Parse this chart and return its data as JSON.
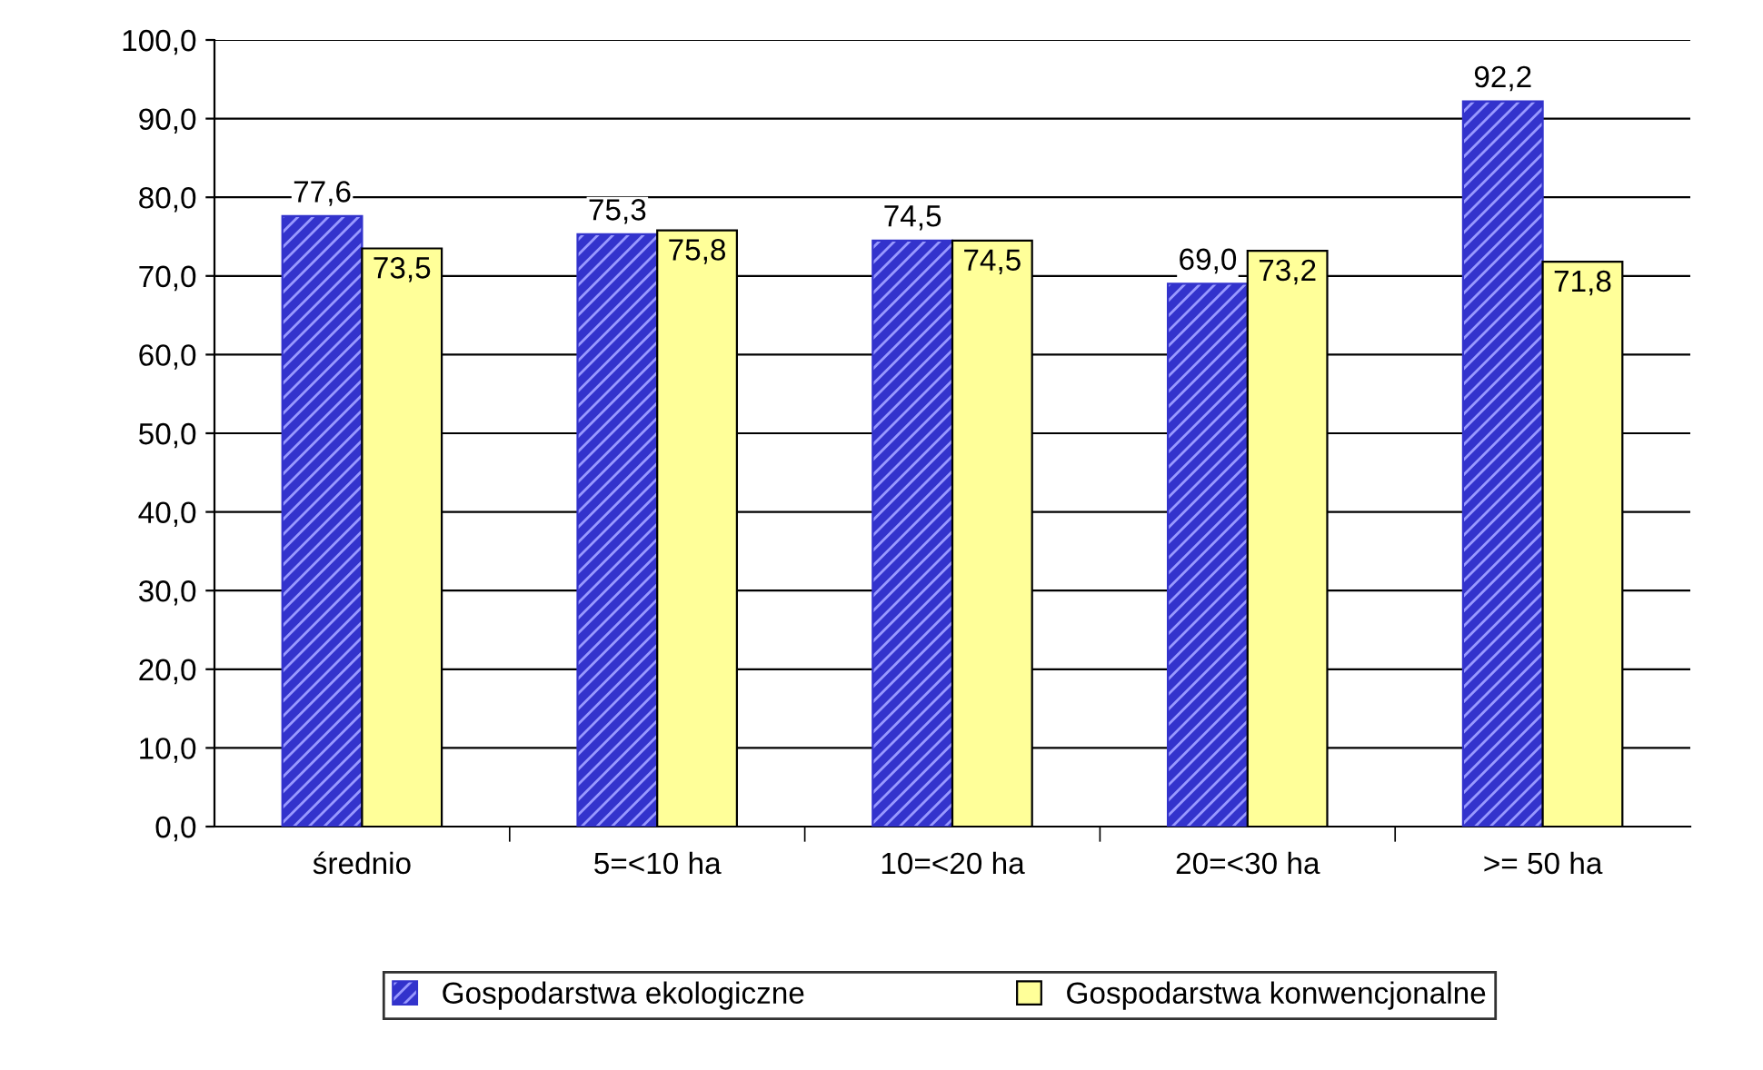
{
  "chart_data": {
    "type": "bar",
    "categories": [
      "średnio",
      "5=<10 ha",
      "10=<20 ha",
      "20=<30 ha",
      ">= 50 ha"
    ],
    "series": [
      {
        "name": "Gospodarstwa ekologiczne",
        "color": "#3333cc",
        "values": [
          77.6,
          75.3,
          74.5,
          69.0,
          92.2
        ],
        "value_labels": [
          "77,6",
          "75,3",
          "74,5",
          "69,0",
          "92,2"
        ]
      },
      {
        "name": "Gospodarstwa konwencjonalne",
        "color": "#ffff99",
        "values": [
          73.5,
          75.8,
          74.5,
          73.2,
          71.8
        ],
        "value_labels": [
          "73,5",
          "75,8",
          "74,5",
          "73,2",
          "71,8"
        ]
      }
    ],
    "ylim": [
      0,
      100
    ],
    "yticks": [
      {
        "value": 0,
        "label": "0,0"
      },
      {
        "value": 10,
        "label": "10,0"
      },
      {
        "value": 20,
        "label": "20,0"
      },
      {
        "value": 30,
        "label": "30,0"
      },
      {
        "value": 40,
        "label": "40,0"
      },
      {
        "value": 50,
        "label": "50,0"
      },
      {
        "value": 60,
        "label": "60,0"
      },
      {
        "value": 70,
        "label": "70,0"
      },
      {
        "value": 80,
        "label": "80,0"
      },
      {
        "value": 90,
        "label": "90,0"
      },
      {
        "value": 100,
        "label": "100,0"
      }
    ],
    "grid": "y",
    "legend": "bottom"
  }
}
